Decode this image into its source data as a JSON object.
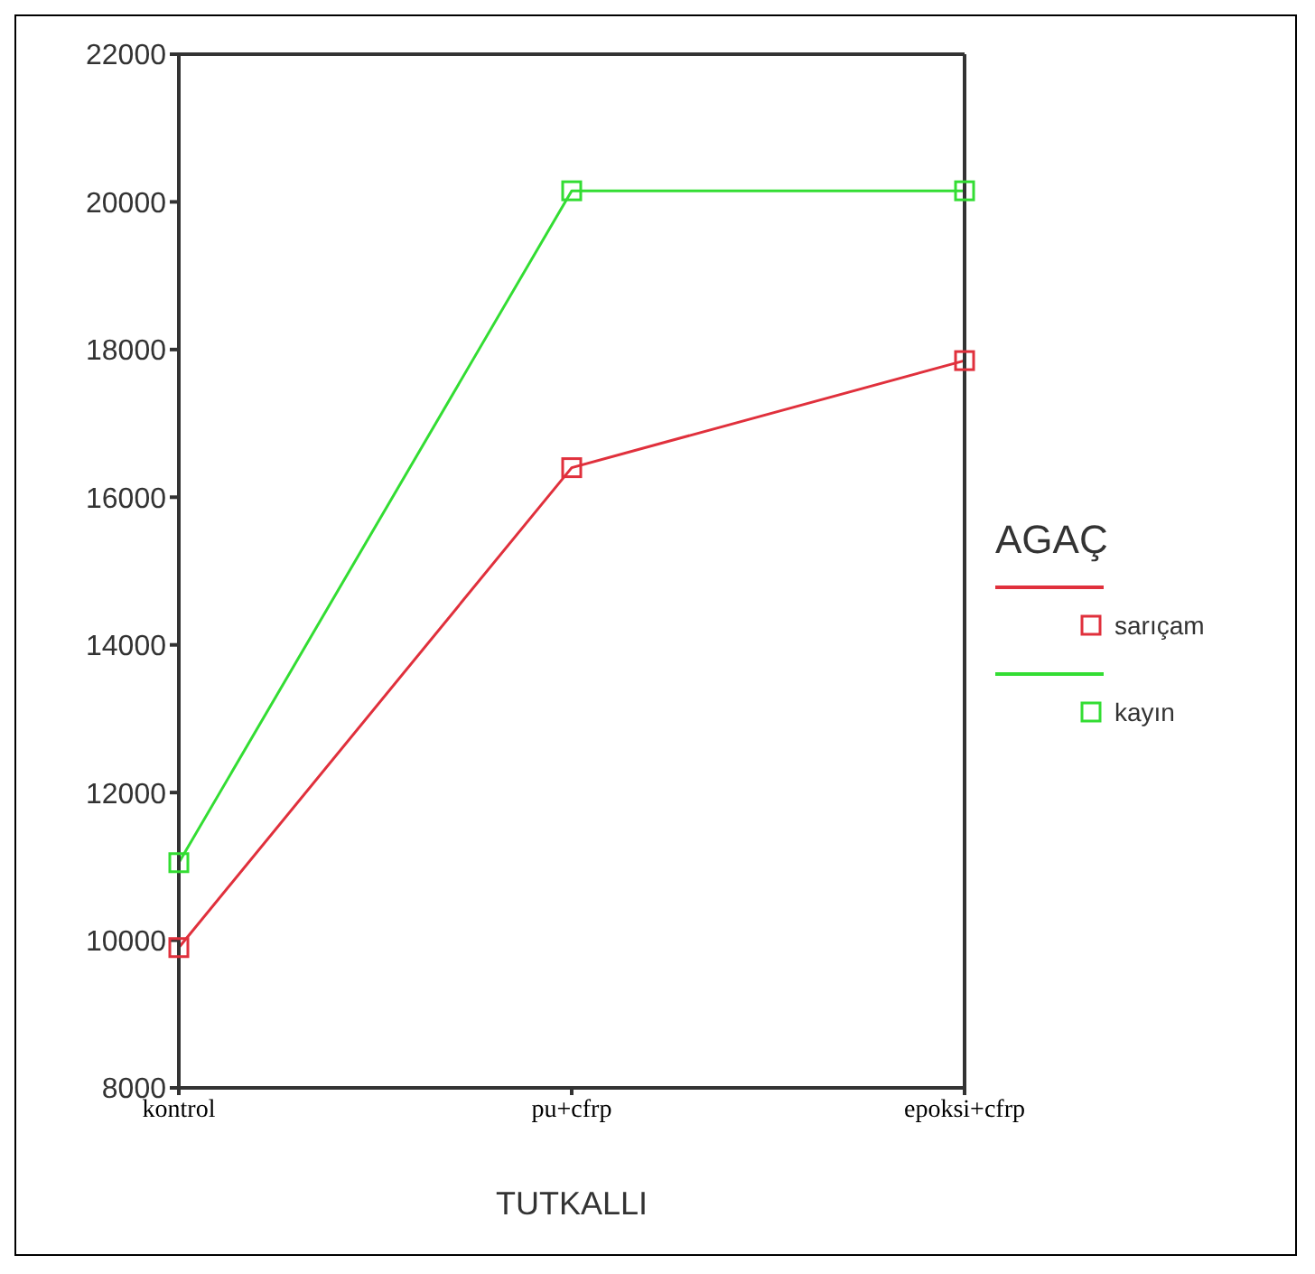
{
  "chart_data": {
    "type": "line",
    "xlabel": "TUTKALLI",
    "legend_title": "AGAÇ",
    "categories": [
      "kontrol",
      "pu+cfrp",
      "epoksi+cfrp"
    ],
    "series": [
      {
        "name": "sarıçam",
        "color": "#e0303c",
        "values": [
          9900,
          16400,
          17850
        ]
      },
      {
        "name": "kayın",
        "color": "#33dd33",
        "values": [
          11050,
          20150,
          20150
        ]
      }
    ],
    "ylim": [
      8000,
      22000
    ],
    "yticks": [
      8000,
      10000,
      12000,
      14000,
      16000,
      18000,
      20000,
      22000
    ],
    "grid": false,
    "legend": "right",
    "marker": "square",
    "line_style": "solid"
  }
}
